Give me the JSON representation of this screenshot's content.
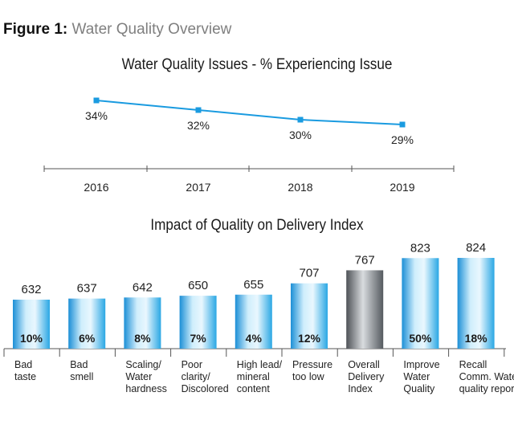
{
  "figure": {
    "label": "Figure 1:",
    "title": "Water Quality Overview"
  },
  "chart_data": [
    {
      "type": "line",
      "title": "Water Quality Issues - % Experiencing Issue",
      "x": [
        "2016",
        "2017",
        "2018",
        "2019"
      ],
      "series": [
        {
          "values": [
            34,
            32,
            30,
            29
          ],
          "labels": [
            "34%",
            "32%",
            "30%",
            "29%"
          ],
          "color": "#1a9be0"
        }
      ]
    },
    {
      "type": "bar",
      "title": "Impact of Quality on Delivery Index",
      "categories": [
        [
          "Bad",
          "taste"
        ],
        [
          "Bad",
          "smell"
        ],
        [
          "Scaling/",
          "Water",
          "hardness"
        ],
        [
          "Poor",
          "clarity/",
          "Discolored"
        ],
        [
          "High lead/",
          "mineral",
          "content"
        ],
        [
          "Pressure",
          "too low"
        ],
        [
          "Overall",
          "Delivery",
          "Index"
        ],
        [
          "Improve",
          "Water",
          "Quality"
        ],
        [
          "Recall",
          "Comm. Water",
          "quality report"
        ]
      ],
      "values": [
        632,
        637,
        642,
        650,
        655,
        707,
        767,
        823,
        824
      ],
      "inner_labels": [
        "10%",
        "6%",
        "8%",
        "7%",
        "4%",
        "12%",
        "",
        "50%",
        "18%"
      ],
      "highlight_index": 6,
      "colors": {
        "bar": "#29a9e6",
        "highlight": "#6f7479"
      }
    }
  ]
}
